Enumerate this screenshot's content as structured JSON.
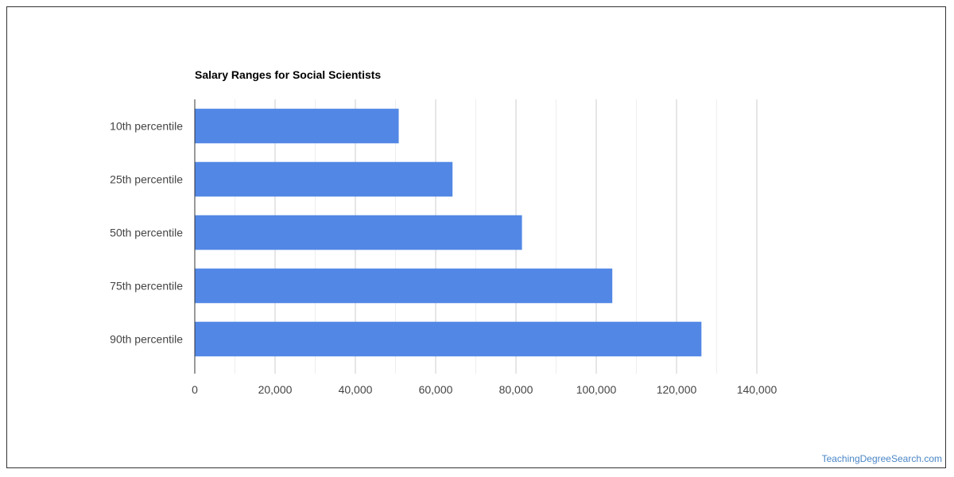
{
  "chart_data": {
    "type": "bar",
    "orientation": "horizontal",
    "title": "Salary Ranges for Social Scientists",
    "categories": [
      "10th percentile",
      "25th percentile",
      "50th percentile",
      "75th percentile",
      "90th percentile"
    ],
    "values": [
      50800,
      64200,
      81500,
      104000,
      126200
    ],
    "xlim": [
      0,
      140000
    ],
    "x_ticks": [
      0,
      20000,
      40000,
      60000,
      80000,
      100000,
      120000,
      140000
    ],
    "x_tick_labels": [
      "0",
      "20,000",
      "40,000",
      "60,000",
      "80,000",
      "100,000",
      "120,000",
      "140,000"
    ],
    "grid": true,
    "legend": "none",
    "bar_color": "#5287e5"
  },
  "watermark": "TeachingDegreeSearch.com"
}
